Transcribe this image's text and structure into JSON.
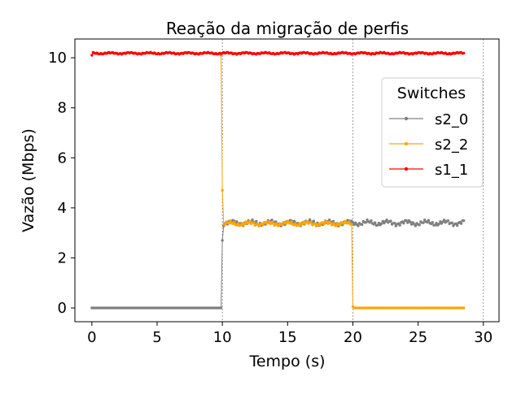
{
  "chart_data": {
    "type": "line",
    "title": "Reação da migração de perfis",
    "xlabel": "Tempo (s)",
    "ylabel": "Vazão (Mbps)",
    "xlim": [
      -1.3,
      31.2
    ],
    "ylim": [
      -0.55,
      10.75
    ],
    "xticks": [
      0,
      5,
      10,
      15,
      20,
      25,
      30
    ],
    "yticks": [
      0,
      2,
      4,
      6,
      8,
      10
    ],
    "xtick_labels": [
      "0",
      "5",
      "10",
      "15",
      "20",
      "25",
      "30"
    ],
    "ytick_labels": [
      "0",
      "2",
      "4",
      "6",
      "8",
      "10"
    ],
    "vertical_reference_lines": [
      10,
      20,
      30
    ],
    "grid": false,
    "legend": {
      "title": "Switches",
      "position": "upper-right"
    },
    "sample_interval_s": 0.1,
    "series": [
      {
        "name": "s2_0",
        "color": "#808080",
        "segments": [
          {
            "x_start": 0.0,
            "x_end": 9.9,
            "level": 0.0,
            "jitter": 0.0
          },
          {
            "x_start": 10.0,
            "x_end": 10.0,
            "level": 2.7,
            "jitter": 0.0
          },
          {
            "x_start": 10.1,
            "x_end": 28.5,
            "level": 3.4,
            "jitter": 0.09
          }
        ]
      },
      {
        "name": "s2_2",
        "color": "#ffa500",
        "segments": [
          {
            "x_start": 9.9,
            "x_end": 9.9,
            "level": 10.1,
            "jitter": 0.0
          },
          {
            "x_start": 10.0,
            "x_end": 10.0,
            "level": 4.7,
            "jitter": 0.0
          },
          {
            "x_start": 10.1,
            "x_end": 19.9,
            "level": 3.37,
            "jitter": 0.07
          },
          {
            "x_start": 20.0,
            "x_end": 20.0,
            "level": 0.05,
            "jitter": 0.0
          },
          {
            "x_start": 20.1,
            "x_end": 28.5,
            "level": 0.0,
            "jitter": 0.0
          }
        ]
      },
      {
        "name": "s1_1",
        "color": "#ff0000",
        "segments": [
          {
            "x_start": 0.0,
            "x_end": 0.0,
            "level": 10.1,
            "jitter": 0.0
          },
          {
            "x_start": 0.1,
            "x_end": 28.5,
            "level": 10.18,
            "jitter": 0.03
          }
        ]
      }
    ]
  }
}
